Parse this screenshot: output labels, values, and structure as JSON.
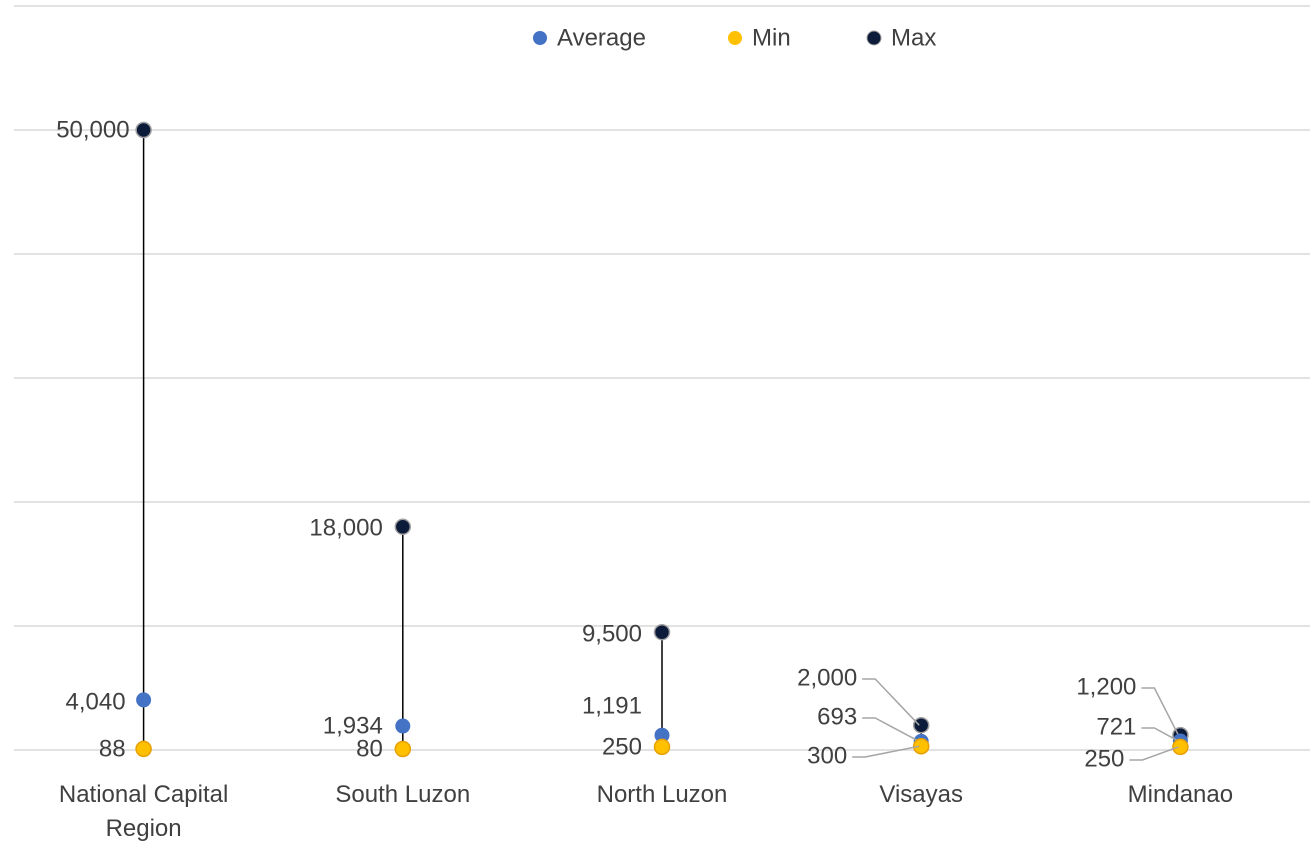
{
  "chart_data": {
    "type": "dot-range",
    "categories": [
      "National Capital Region",
      "South Luzon",
      "North Luzon",
      "Visayas",
      "Mindanao"
    ],
    "series": [
      {
        "name": "Average",
        "color": "#4472c4",
        "values": [
          4040,
          1934,
          1191,
          693,
          721
        ],
        "value_labels": [
          "4,040",
          "1,934",
          "1,191",
          "693",
          "721"
        ]
      },
      {
        "name": "Min",
        "color": "#ffc000",
        "values": [
          88,
          80,
          250,
          300,
          250
        ],
        "value_labels": [
          "88",
          "80",
          "250",
          "300",
          "250"
        ]
      },
      {
        "name": "Max",
        "color": "#0d1b3a",
        "values": [
          50000,
          18000,
          9500,
          2000,
          1200
        ],
        "value_labels": [
          "50,000",
          "18,000",
          "9,500",
          "2,000",
          "1,200"
        ]
      }
    ],
    "ylim": [
      0,
      60000
    ],
    "yticks": [
      0,
      10000,
      20000,
      30000,
      40000,
      50000,
      60000
    ],
    "grid": true,
    "legend": "top"
  }
}
